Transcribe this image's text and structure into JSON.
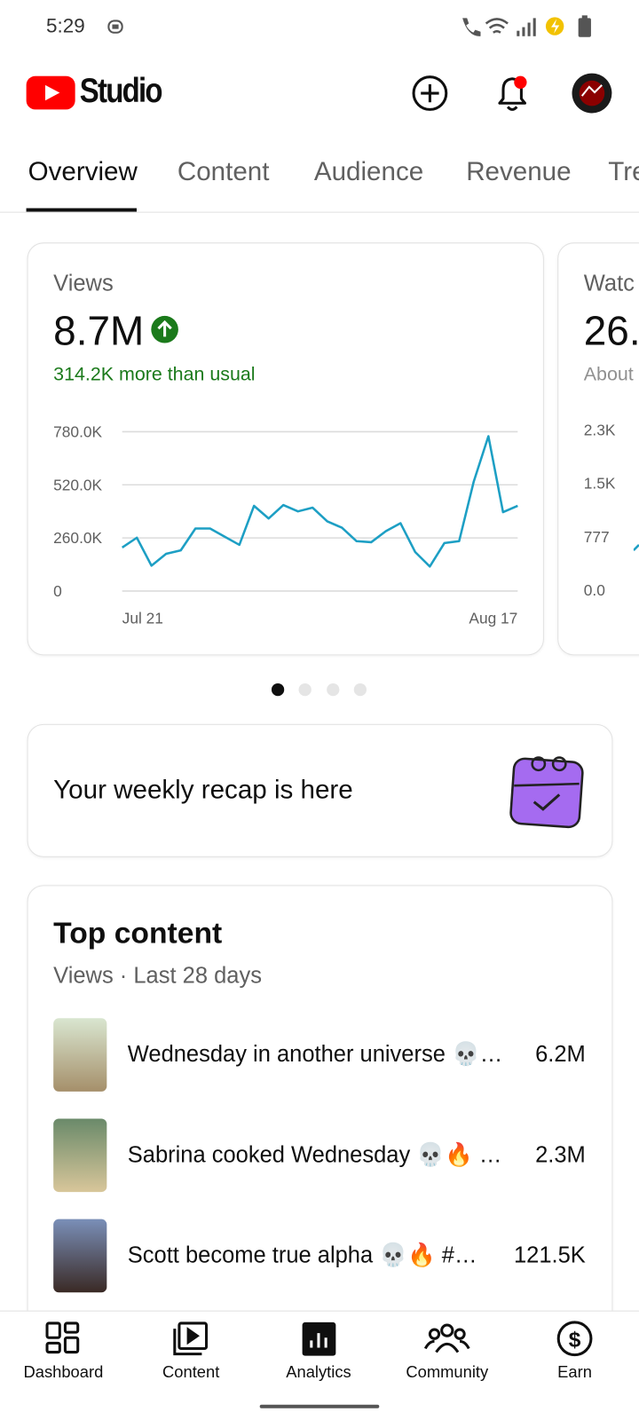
{
  "status_bar": {
    "time": "5:29"
  },
  "header": {
    "title": "Studio"
  },
  "tabs": [
    "Overview",
    "Content",
    "Audience",
    "Revenue",
    "Tre"
  ],
  "chart_data": {
    "type": "line",
    "title": "Views",
    "headline": "8.7M",
    "subtitle": "314.2K more than usual",
    "categories": [
      "Jul 21",
      null,
      null,
      null,
      null,
      null,
      null,
      null,
      null,
      null,
      null,
      null,
      null,
      null,
      null,
      null,
      null,
      null,
      null,
      null,
      null,
      null,
      null,
      null,
      null,
      null,
      null,
      "Aug 17"
    ],
    "values": [
      213000,
      261000,
      124000,
      182000,
      199000,
      306000,
      306000,
      266000,
      226000,
      417000,
      355000,
      421000,
      390000,
      408000,
      341000,
      310000,
      244000,
      239000,
      293000,
      332000,
      191000,
      120000,
      235000,
      244000,
      536000,
      758000,
      386000,
      417000
    ],
    "color": "#1d9fc4",
    "ylim": [
      0,
      780000
    ],
    "yticks": [
      0,
      {
        "value": 260000,
        "label": "260.0K"
      },
      {
        "value": 520000,
        "label": "520.0K"
      },
      {
        "value": 780000,
        "label": "780.0K"
      }
    ],
    "grid": true
  },
  "next_card": {
    "title": "Watc",
    "value": "26.",
    "subtitle": "About",
    "tick_labels": [
      "2.3K",
      "1.5K",
      "777",
      "0.0"
    ]
  },
  "recap": {
    "text": "Your weekly recap is here"
  },
  "top_content": {
    "title": "Top content",
    "subtitle": "Views · Last 28 days",
    "items": [
      {
        "title": "Wednesday in another universe 💀…",
        "views": "6.2M"
      },
      {
        "title": "Sabrina cooked Wednesday 💀🔥 …",
        "views": "2.3M"
      },
      {
        "title": "Scott become true alpha 💀🔥 #…",
        "views": "121.5K"
      }
    ]
  },
  "bottom_nav": [
    "Dashboard",
    "Content",
    "Analytics",
    "Community",
    "Earn"
  ]
}
